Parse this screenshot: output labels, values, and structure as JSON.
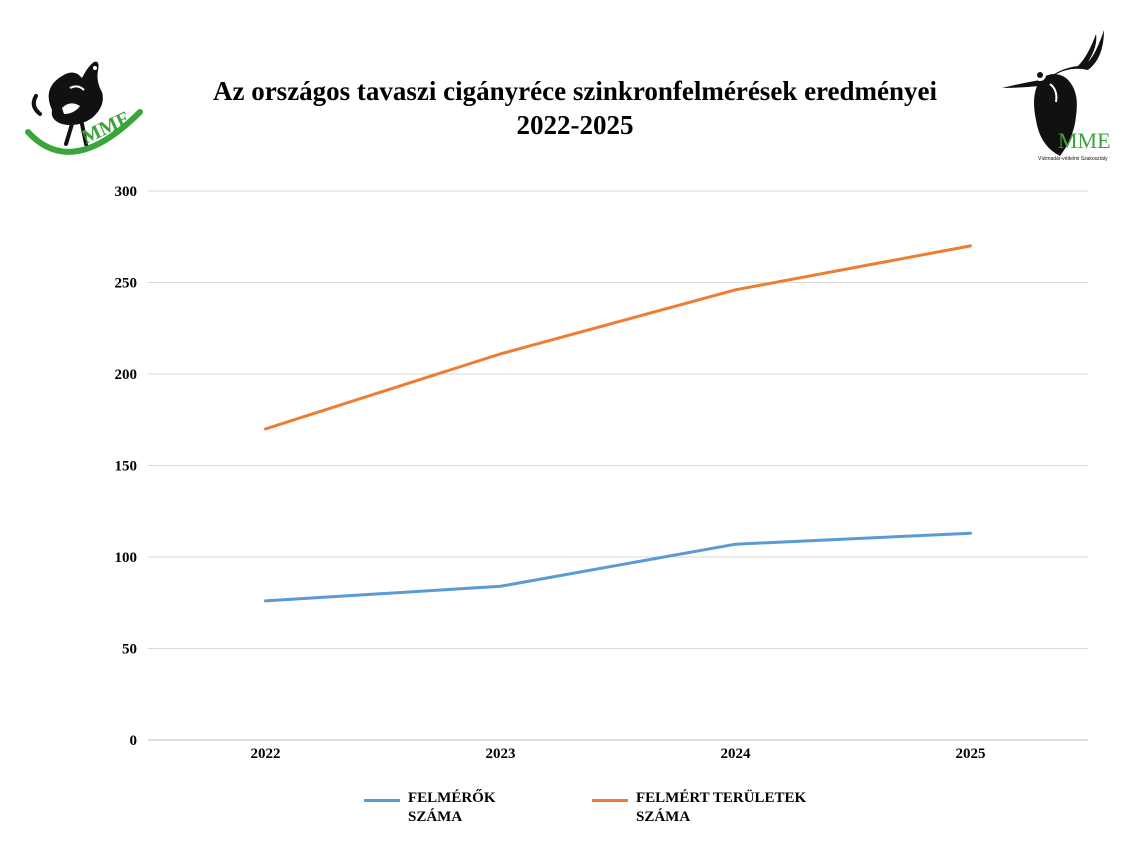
{
  "header": {
    "title_line1": "Az országos tavaszi cigányréce szinkronfelmérések eredményei",
    "title_line2": "2022-2025"
  },
  "logos": {
    "left_text": "MME",
    "right_text": "MME",
    "right_subtext": "Vízimadár-védelmi Szakosztály"
  },
  "colors": {
    "series1": "#5b9bd5",
    "series2": "#ed7d31",
    "grid": "#d9d9d9",
    "logo_green": "#3aa53a"
  },
  "chart_data": {
    "type": "line",
    "title": "Az országos tavaszi cigányréce szinkronfelmérések eredményei 2022-2025",
    "categories": [
      "2022",
      "2023",
      "2024",
      "2025"
    ],
    "series": [
      {
        "name": "FELMÉRŐK SZÁMA",
        "values": [
          76,
          84,
          107,
          113
        ]
      },
      {
        "name": "FELMÉRT TERÜLETEK SZÁMA",
        "values": [
          170,
          211,
          246,
          270
        ]
      }
    ],
    "ylim": [
      0,
      300
    ],
    "yticks": [
      0,
      50,
      100,
      150,
      200,
      250,
      300
    ],
    "grid": true,
    "legend_position": "bottom"
  },
  "legend": {
    "items": [
      {
        "label_line1": "FELMÉRŐK",
        "label_line2": "SZÁMA"
      },
      {
        "label_line1": "FELMÉRT TERÜLETEK",
        "label_line2": "SZÁMA"
      }
    ]
  }
}
